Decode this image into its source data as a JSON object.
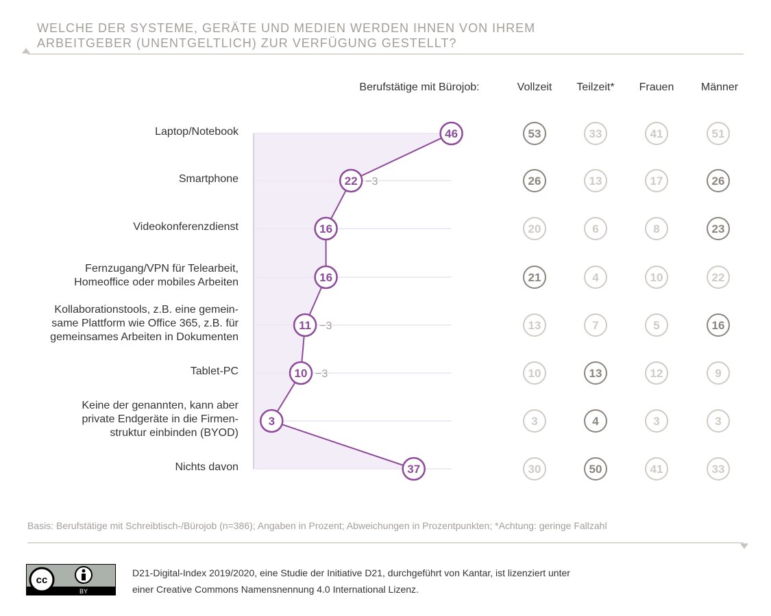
{
  "title_lines": [
    "WELCHE DER SYSTEME, GERÄTE UND MEDIEN WERDEN IHNEN VON IHREM",
    "ARBEITGEBER (UNENTGELTLICH) ZUR VERFÜGUNG GESTELLT?"
  ],
  "chart_data": {
    "type": "line",
    "main_series_label": "Berufstätige mit Bürojob:",
    "categories": [
      "Laptop/Notebook",
      "Smartphone",
      "Videokonferenzdienst",
      "Fernzugang/VPN für Telearbeit,\nHomeoffice oder mobiles Arbeiten",
      "Kollaborationstools, z.B. eine gemein-\nsame Plattform wie Office 365, z.B. für\ngemeinsames Arbeiten in Dokumenten",
      "Tablet-PC",
      "Keine der genannten, kann aber\nprivate Endgeräte in die Firmen-\nstruktur einbinden (BYOD)",
      "Nichts davon"
    ],
    "values": [
      46,
      22,
      16,
      16,
      11,
      10,
      3,
      37
    ],
    "changes": [
      "",
      "−3",
      "",
      "",
      "−3",
      "−3",
      "",
      ""
    ],
    "columns": [
      {
        "name": "Vollzeit",
        "values": [
          53,
          26,
          20,
          21,
          13,
          10,
          3,
          30
        ],
        "highlight": [
          true,
          true,
          false,
          true,
          false,
          false,
          false,
          false
        ]
      },
      {
        "name": "Teilzeit*",
        "values": [
          33,
          13,
          6,
          4,
          7,
          13,
          4,
          50
        ],
        "highlight": [
          false,
          false,
          false,
          false,
          false,
          true,
          true,
          true
        ]
      },
      {
        "name": "Frauen",
        "values": [
          41,
          17,
          8,
          10,
          5,
          12,
          3,
          41
        ],
        "highlight": [
          false,
          false,
          false,
          false,
          false,
          false,
          false,
          false
        ]
      },
      {
        "name": "Männer",
        "values": [
          51,
          26,
          23,
          22,
          16,
          9,
          3,
          33
        ],
        "highlight": [
          false,
          true,
          true,
          false,
          true,
          false,
          false,
          false
        ]
      }
    ],
    "colors": {
      "main": "#8e4a9a",
      "fill": "#efe9f5",
      "highlight": "#8a847e",
      "muted": "#cfcac5"
    }
  },
  "basis": "Basis: Berufstätige mit Schreibtisch-/Bürojob (n=386); Angaben in Prozent; Abweichungen in Prozentpunkten; *Achtung: geringe Fallzahl",
  "license_lines": [
    "D21-Digital-Index 2019/2020, eine Studie der Initiative D21, durchgeführt von Kantar, ist lizenziert unter",
    "einer Creative Commons Namensnennung 4.0 International Lizenz."
  ],
  "cc_logo": {
    "text": "cc",
    "by": "BY"
  }
}
